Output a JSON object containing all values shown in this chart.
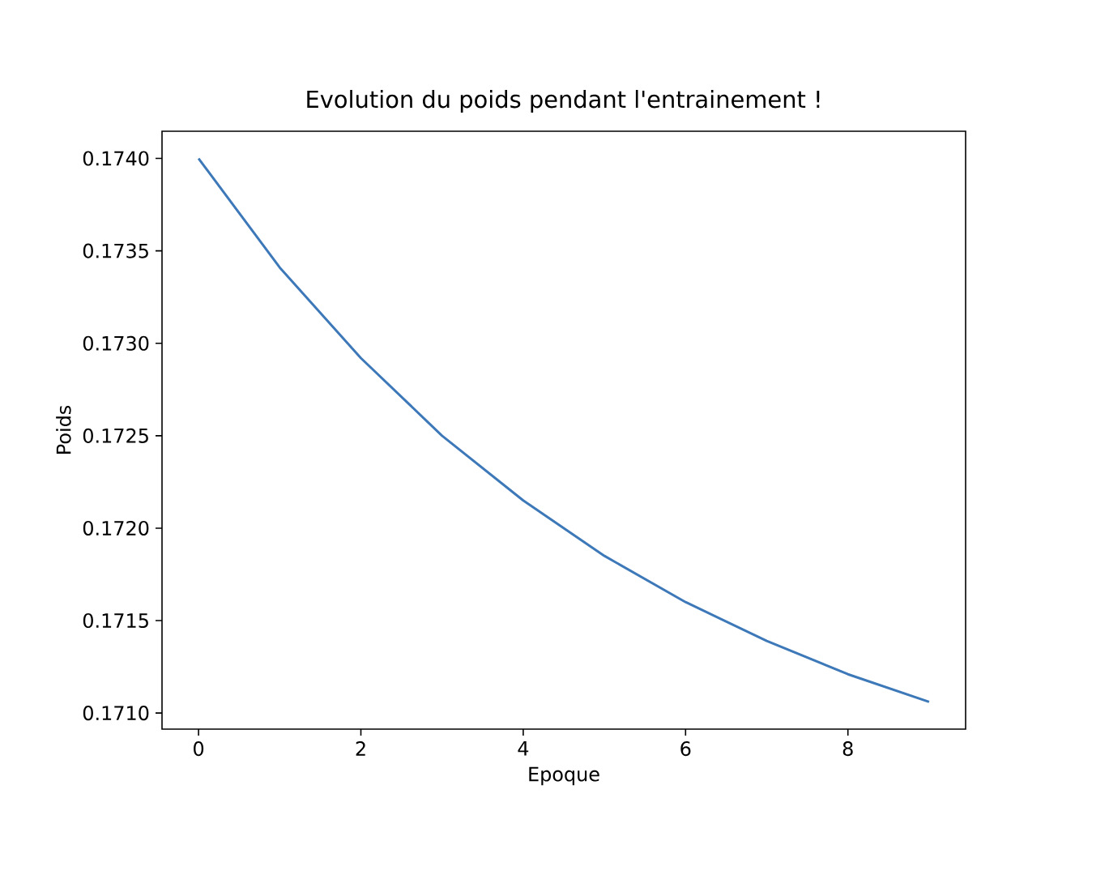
{
  "chart_data": {
    "type": "line",
    "title": "Evolution du poids pendant l'entrainement !",
    "xlabel": "Epoque",
    "ylabel": "Poids",
    "x": [
      0,
      1,
      2,
      3,
      4,
      5,
      6,
      7,
      8,
      9
    ],
    "series": [
      {
        "color": "#3d78b8",
        "values": [
          0.174,
          0.17341,
          0.17292,
          0.1725,
          0.17215,
          0.17185,
          0.1716,
          0.17139,
          0.17121,
          0.17106
        ]
      }
    ],
    "xlim": [
      -0.45,
      9.45
    ],
    "ylim": [
      0.170913,
      0.174147
    ],
    "xticks": [
      0,
      2,
      4,
      6,
      8
    ],
    "yticks": [
      {
        "value": 0.171,
        "label": "0.1710"
      },
      {
        "value": 0.1715,
        "label": "0.1715"
      },
      {
        "value": 0.172,
        "label": "0.1720"
      },
      {
        "value": 0.1725,
        "label": "0.1725"
      },
      {
        "value": 0.173,
        "label": "0.1730"
      },
      {
        "value": 0.1735,
        "label": "0.1735"
      },
      {
        "value": 0.174,
        "label": "0.1740"
      }
    ],
    "marker": "none",
    "line_style": "solid"
  }
}
